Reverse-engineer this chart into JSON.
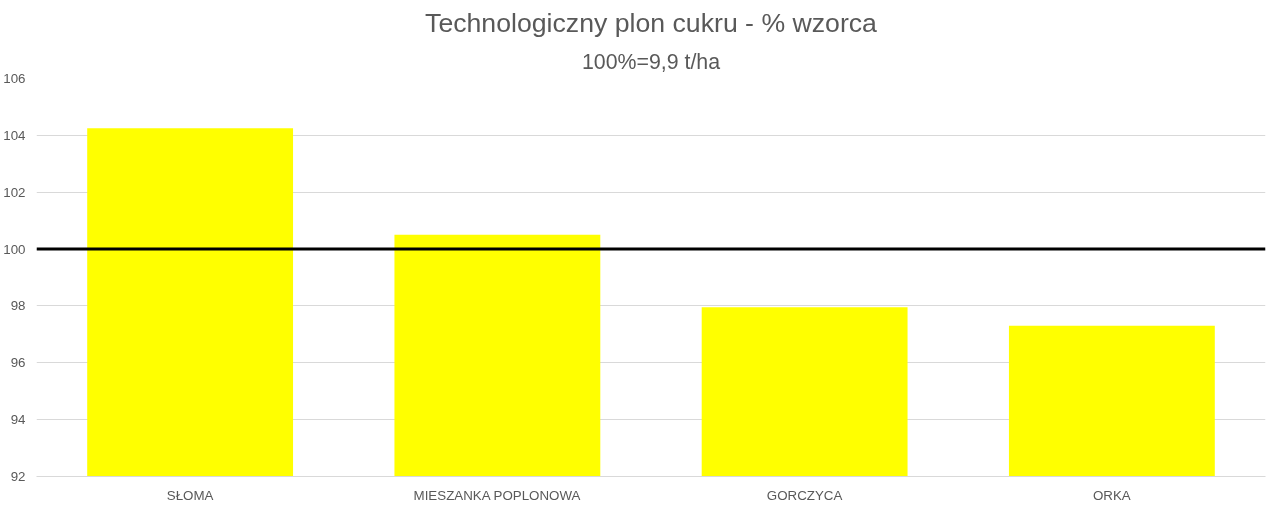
{
  "chart_data": {
    "type": "bar",
    "title": "Technologiczny plon cukru - % wzorca",
    "subtitle": "100%=9,9 t/ha",
    "categories": [
      "SŁOMA",
      "MIESZANKA POPLONOWA",
      "GORCZYCA",
      "ORKA"
    ],
    "values": [
      104.25,
      100.5,
      97.95,
      97.3
    ],
    "color": "#ffff00",
    "ylim": [
      92,
      106
    ],
    "yticks": [
      92,
      94,
      96,
      98,
      100,
      102,
      104,
      106
    ],
    "grid": "y",
    "ref_lines": [
      {
        "axis": "y",
        "value": 100,
        "color": "#000000"
      }
    ]
  }
}
